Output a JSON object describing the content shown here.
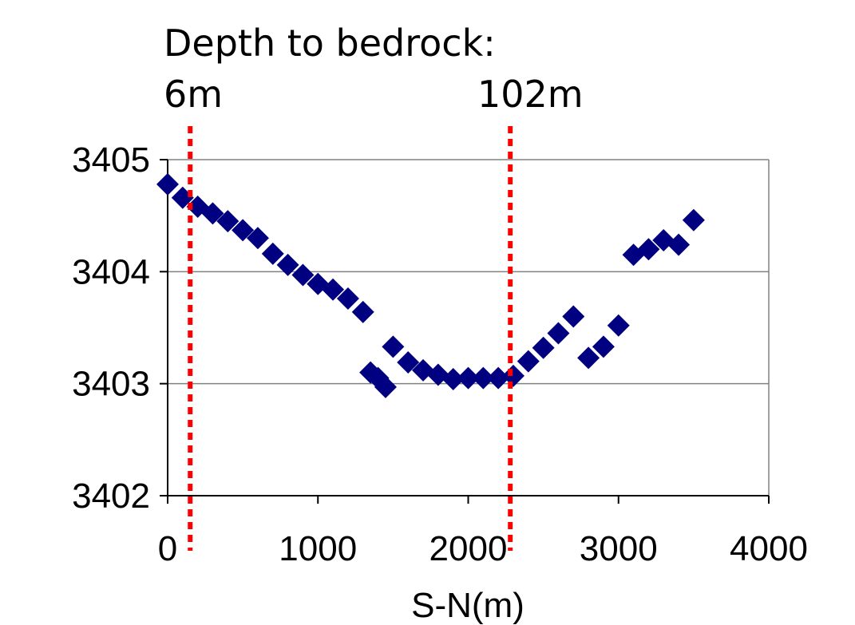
{
  "annotations": {
    "title": "Depth to bedrock:",
    "left_depth": "6m",
    "right_depth": "102m"
  },
  "colors": {
    "marker": "#000080",
    "reference_line": "#ff0000",
    "grid": "#808080",
    "axis": "#000000"
  },
  "chart_data": {
    "type": "scatter",
    "title": "Depth to bedrock:",
    "xlabel": "S-N(m)",
    "ylabel": "",
    "xlim": [
      0,
      4000
    ],
    "ylim": [
      3402,
      3405
    ],
    "xticks": [
      0,
      1000,
      2000,
      3000,
      4000
    ],
    "yticks": [
      3402,
      3403,
      3404,
      3405
    ],
    "grid": "horizontal",
    "marker": "diamond",
    "reference_lines": [
      {
        "x": 150,
        "label": "6m"
      },
      {
        "x": 2280,
        "label": "102m"
      }
    ],
    "series": [
      {
        "name": "",
        "points": [
          [
            0,
            3404.78
          ],
          [
            100,
            3404.66
          ],
          [
            200,
            3404.58
          ],
          [
            300,
            3404.52
          ],
          [
            400,
            3404.45
          ],
          [
            500,
            3404.37
          ],
          [
            600,
            3404.3
          ],
          [
            700,
            3404.16
          ],
          [
            800,
            3404.06
          ],
          [
            900,
            3403.97
          ],
          [
            1000,
            3403.89
          ],
          [
            1100,
            3403.84
          ],
          [
            1200,
            3403.76
          ],
          [
            1300,
            3403.64
          ],
          [
            1350,
            3403.1
          ],
          [
            1400,
            3403.05
          ],
          [
            1450,
            3402.97
          ],
          [
            1500,
            3403.33
          ],
          [
            1600,
            3403.19
          ],
          [
            1700,
            3403.12
          ],
          [
            1800,
            3403.08
          ],
          [
            1900,
            3403.04
          ],
          [
            2000,
            3403.05
          ],
          [
            2100,
            3403.05
          ],
          [
            2200,
            3403.05
          ],
          [
            2300,
            3403.07
          ],
          [
            2400,
            3403.2
          ],
          [
            2500,
            3403.32
          ],
          [
            2600,
            3403.45
          ],
          [
            2700,
            3403.6
          ],
          [
            2800,
            3403.23
          ],
          [
            2900,
            3403.33
          ],
          [
            3000,
            3403.52
          ],
          [
            3100,
            3404.15
          ],
          [
            3200,
            3404.2
          ],
          [
            3300,
            3404.28
          ],
          [
            3400,
            3404.24
          ],
          [
            3500,
            3404.46
          ]
        ]
      }
    ]
  }
}
